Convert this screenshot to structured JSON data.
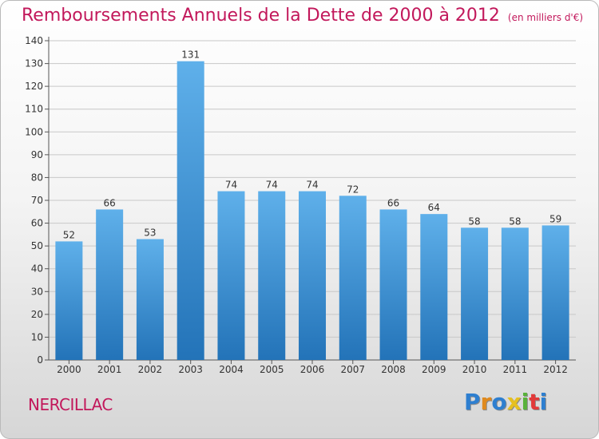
{
  "title": "Remboursements Annuels de la Dette de 2000 à 2012",
  "subtitle": "(en milliers d'€)",
  "commune": "NERCILLAC",
  "logo": {
    "text": "Proxiti",
    "letter_colors": [
      "#2e7fd0",
      "#e08a1e",
      "#2e7fd0",
      "#e6c020",
      "#59b23a",
      "#e23a3a",
      "#2e7fd0"
    ]
  },
  "colors": {
    "title": "#c2185b",
    "bar_top": "#5fb0ea",
    "bar_bottom": "#2373b8",
    "grid": "#c8c8c8",
    "axis_text": "#333333"
  },
  "chart_data": {
    "type": "bar",
    "title": "Remboursements Annuels de la Dette de 2000 à 2012",
    "categories": [
      "2000",
      "2001",
      "2002",
      "2003",
      "2004",
      "2005",
      "2006",
      "2007",
      "2008",
      "2009",
      "2010",
      "2011",
      "2012"
    ],
    "values": [
      52,
      66,
      53,
      131,
      74,
      74,
      74,
      72,
      66,
      64,
      58,
      58,
      59
    ],
    "data_labels": [
      "52",
      "66",
      "53",
      "131",
      "74",
      "74",
      "74",
      "72",
      "66",
      "64",
      "58",
      "58",
      "59"
    ],
    "yticks": [
      "0",
      "10",
      "20",
      "30",
      "40",
      "50",
      "60",
      "70",
      "80",
      "90",
      "100",
      "110",
      "120",
      "130",
      "140"
    ],
    "ylim": [
      0,
      140
    ],
    "grid": true
  }
}
